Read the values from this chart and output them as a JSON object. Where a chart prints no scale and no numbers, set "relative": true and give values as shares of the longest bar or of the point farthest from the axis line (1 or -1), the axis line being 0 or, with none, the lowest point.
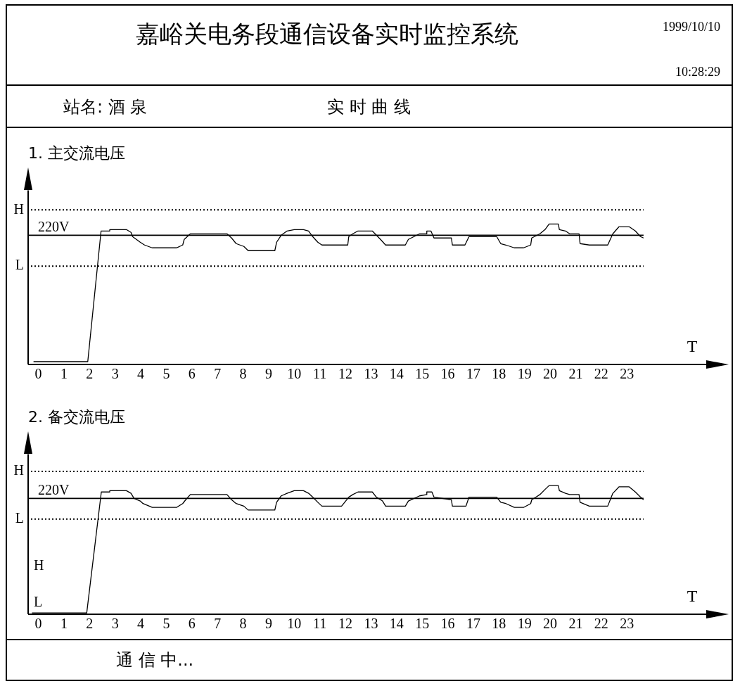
{
  "chart_data": [
    {
      "type": "other",
      "title": "嘉峪关电务段通信设备实时监控系统",
      "annotations": [
        "1999/10/10",
        "10:28:29",
        "站名: 酒 泉",
        "实 时 曲 线",
        "通 信 中..."
      ]
    },
    {
      "type": "line",
      "title": "1. 主交流电压",
      "xlabel": "T",
      "relative": true,
      "tick_labels": "x",
      "legend": false,
      "color": "#000000",
      "xlim": [
        -0.4,
        26.1
      ],
      "xticks": [
        0,
        1,
        2,
        3,
        4,
        5,
        6,
        7,
        8,
        9,
        10,
        11,
        12,
        13,
        14,
        15,
        16,
        17,
        18,
        19,
        20,
        21,
        22,
        23
      ],
      "x": [
        -0.19,
        1.93,
        2.45,
        2.79,
        2.79,
        3.44,
        3.62,
        3.68,
        3.98,
        4.15,
        4.45,
        5.4,
        5.64,
        5.7,
        5.94,
        7.37,
        7.55,
        7.73,
        8.03,
        8.2,
        9.24,
        9.31,
        9.49,
        9.72,
        10,
        10.36,
        10.56,
        10.72,
        10.92,
        11.08,
        12.09,
        12.13,
        12.29,
        12.49,
        13.05,
        13.21,
        13.37,
        13.57,
        14.34,
        14.46,
        14.9,
        15.18,
        15.18,
        15.34,
        15.46,
        15.62,
        16.14,
        16.18,
        16.67,
        16.83,
        17.91,
        18.07,
        18.27,
        18.6,
        18.96,
        19.24,
        19.28,
        19.6,
        19.8,
        19.96,
        20.32,
        20.36,
        20.6,
        20.76,
        21.13,
        21.17,
        21.53,
        22.25,
        22.45,
        22.69,
        23.09,
        23.33,
        23.53,
        23.65
      ],
      "values": [
        0.02,
        0.02,
        0.95,
        0.95,
        0.96,
        0.96,
        0.94,
        0.91,
        0.87,
        0.85,
        0.83,
        0.83,
        0.85,
        0.89,
        0.93,
        0.93,
        0.9,
        0.86,
        0.84,
        0.81,
        0.81,
        0.87,
        0.92,
        0.95,
        0.96,
        0.96,
        0.95,
        0.91,
        0.87,
        0.85,
        0.85,
        0.91,
        0.93,
        0.95,
        0.95,
        0.92,
        0.89,
        0.85,
        0.85,
        0.89,
        0.93,
        0.93,
        0.95,
        0.95,
        0.9,
        0.9,
        0.9,
        0.85,
        0.85,
        0.91,
        0.91,
        0.86,
        0.85,
        0.83,
        0.83,
        0.85,
        0.9,
        0.93,
        0.96,
        1,
        1,
        0.96,
        0.95,
        0.93,
        0.93,
        0.86,
        0.85,
        0.85,
        0.93,
        0.98,
        0.98,
        0.95,
        0.91,
        0.9
      ],
      "ref_lines": [
        {
          "axis": "y",
          "value": 1.1,
          "label": "H",
          "line_style": "dotted"
        },
        {
          "axis": "y",
          "value": 0.92,
          "label": "220V",
          "line_style": "solid"
        },
        {
          "axis": "y",
          "value": 0.7,
          "label": "L",
          "line_style": "dotted"
        }
      ]
    },
    {
      "type": "line",
      "title": "2. 备交流电压",
      "xlabel": "T",
      "relative": true,
      "tick_labels": "x",
      "legend": false,
      "color": "#000000",
      "xlim": [
        -0.4,
        26.1
      ],
      "xticks": [
        0,
        1,
        2,
        3,
        4,
        5,
        6,
        7,
        8,
        9,
        10,
        11,
        12,
        13,
        14,
        15,
        16,
        17,
        18,
        19,
        20,
        21,
        22,
        23
      ],
      "x": [
        -0.25,
        1.89,
        2.46,
        2.79,
        2.79,
        3.44,
        3.62,
        3.74,
        3.98,
        4.09,
        4.45,
        5.4,
        5.64,
        5.76,
        5.94,
        7.37,
        7.55,
        7.73,
        8.03,
        8.2,
        9.24,
        9.31,
        9.49,
        9.72,
        10,
        10.36,
        10.56,
        10.72,
        10.92,
        11.08,
        11.85,
        12.13,
        12.29,
        12.49,
        13.05,
        13.21,
        13.45,
        13.57,
        14.34,
        14.46,
        14.9,
        15.18,
        15.18,
        15.38,
        15.46,
        16.14,
        16.18,
        16.71,
        16.83,
        17.91,
        18.07,
        18.27,
        18.6,
        18.96,
        19.24,
        19.28,
        19.6,
        19.8,
        19.96,
        20.32,
        20.36,
        20.6,
        20.76,
        21.13,
        21.17,
        21.53,
        22.25,
        22.45,
        22.69,
        23.09,
        23.33,
        23.53,
        23.65
      ],
      "values": [
        0.01,
        0.01,
        0.95,
        0.95,
        0.96,
        0.96,
        0.94,
        0.9,
        0.88,
        0.86,
        0.83,
        0.83,
        0.86,
        0.89,
        0.93,
        0.93,
        0.89,
        0.86,
        0.84,
        0.81,
        0.81,
        0.87,
        0.92,
        0.94,
        0.96,
        0.96,
        0.94,
        0.91,
        0.87,
        0.84,
        0.84,
        0.91,
        0.93,
        0.95,
        0.95,
        0.91,
        0.88,
        0.84,
        0.84,
        0.88,
        0.92,
        0.93,
        0.95,
        0.95,
        0.91,
        0.89,
        0.84,
        0.84,
        0.91,
        0.91,
        0.87,
        0.86,
        0.83,
        0.83,
        0.86,
        0.89,
        0.93,
        0.97,
        1,
        1,
        0.96,
        0.94,
        0.93,
        0.93,
        0.87,
        0.84,
        0.84,
        0.94,
        0.99,
        0.99,
        0.95,
        0.91,
        0.89
      ],
      "ref_lines": [
        {
          "axis": "y",
          "value": 1.11,
          "label": "H",
          "line_style": "dotted"
        },
        {
          "axis": "y",
          "value": 0.9,
          "label": "220V",
          "line_style": "solid"
        },
        {
          "axis": "y",
          "value": 0.74,
          "label": "L",
          "line_style": "dotted"
        }
      ],
      "annotations": [
        "H",
        "L"
      ]
    }
  ]
}
